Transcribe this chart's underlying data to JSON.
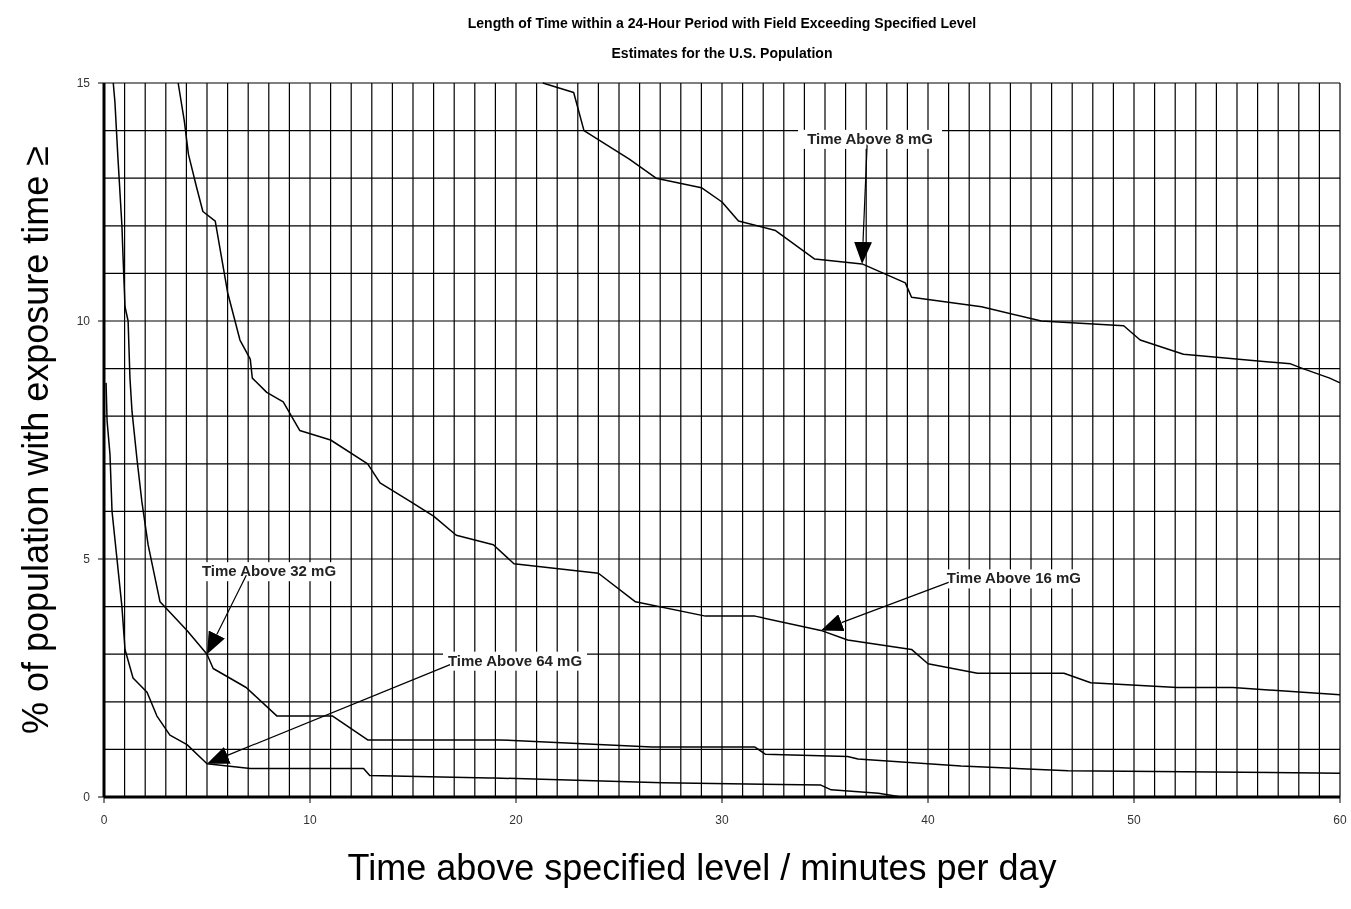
{
  "chart_data": {
    "type": "line",
    "title": "Length of Time within a 24-Hour Period with Field Exceeding Specified Level",
    "subtitle": "Estimates for the U.S. Population",
    "xlabel": "Time above specified level / minutes per day",
    "ylabel": "% of population with exposure time ≥",
    "xlim": [
      0,
      60
    ],
    "ylim": [
      0,
      15
    ],
    "xticks": [
      0,
      {
        "value": 1,
        "label": null
      },
      {
        "value": 2,
        "label": null
      },
      {
        "value": 3,
        "label": null
      },
      {
        "value": 4,
        "label": null
      },
      {
        "value": 5,
        "label": null
      },
      {
        "value": 6,
        "label": null
      },
      {
        "value": 7,
        "label": null
      },
      {
        "value": 8,
        "label": null
      },
      {
        "value": 9,
        "label": null
      },
      10,
      {
        "value": 11,
        "label": null
      },
      {
        "value": 12,
        "label": null
      },
      {
        "value": 13,
        "label": null
      },
      {
        "value": 14,
        "label": null
      },
      {
        "value": 15,
        "label": null
      },
      {
        "value": 16,
        "label": null
      },
      {
        "value": 17,
        "label": null
      },
      {
        "value": 18,
        "label": null
      },
      {
        "value": 19,
        "label": null
      },
      20,
      {
        "value": 21,
        "label": null
      },
      {
        "value": 22,
        "label": null
      },
      {
        "value": 23,
        "label": null
      },
      {
        "value": 24,
        "label": null
      },
      {
        "value": 25,
        "label": null
      },
      {
        "value": 26,
        "label": null
      },
      {
        "value": 27,
        "label": null
      },
      {
        "value": 28,
        "label": null
      },
      {
        "value": 29,
        "label": null
      },
      30,
      {
        "value": 31,
        "label": null
      },
      {
        "value": 32,
        "label": null
      },
      {
        "value": 33,
        "label": null
      },
      {
        "value": 34,
        "label": null
      },
      {
        "value": 35,
        "label": null
      },
      {
        "value": 36,
        "label": null
      },
      {
        "value": 37,
        "label": null
      },
      {
        "value": 38,
        "label": null
      },
      {
        "value": 39,
        "label": null
      },
      40,
      {
        "value": 41,
        "label": null
      },
      {
        "value": 42,
        "label": null
      },
      {
        "value": 43,
        "label": null
      },
      {
        "value": 44,
        "label": null
      },
      {
        "value": 45,
        "label": null
      },
      {
        "value": 46,
        "label": null
      },
      {
        "value": 47,
        "label": null
      },
      {
        "value": 48,
        "label": null
      },
      {
        "value": 49,
        "label": null
      },
      50,
      {
        "value": 51,
        "label": null
      },
      {
        "value": 52,
        "label": null
      },
      {
        "value": 53,
        "label": null
      },
      {
        "value": 54,
        "label": null
      },
      {
        "value": 55,
        "label": null
      },
      {
        "value": 56,
        "label": null
      },
      {
        "value": 57,
        "label": null
      },
      {
        "value": 58,
        "label": null
      },
      {
        "value": 59,
        "label": null
      },
      60
    ],
    "yticks": [
      0,
      {
        "value": 1,
        "label": null
      },
      {
        "value": 2,
        "label": null
      },
      {
        "value": 3,
        "label": null
      },
      {
        "value": 4,
        "label": null
      },
      5,
      {
        "value": 6,
        "label": null
      },
      {
        "value": 7,
        "label": null
      },
      {
        "value": 8,
        "label": null
      },
      {
        "value": 9,
        "label": null
      },
      10,
      {
        "value": 11,
        "label": null
      },
      {
        "value": 12,
        "label": null
      },
      {
        "value": 13,
        "label": null
      },
      {
        "value": 14,
        "label": null
      },
      15
    ],
    "grid": true,
    "marker": "none",
    "line_style": "solid",
    "series": [
      {
        "color": "#000000",
        "x": [
          21.3,
          22.8,
          23.3,
          25.5,
          26.8,
          29.0,
          30.0,
          30.8,
          32.6,
          34.5,
          36.8,
          38.9,
          39.2,
          42.6,
          45.5,
          49.5,
          50.3,
          52.4,
          57.6,
          58.2,
          59.5,
          60
        ],
        "values": [
          15.0,
          14.8,
          14.0,
          13.4,
          13.0,
          12.8,
          12.5,
          12.1,
          11.9,
          11.3,
          11.2,
          10.8,
          10.5,
          10.3,
          10.0,
          9.9,
          9.6,
          9.3,
          9.1,
          9.0,
          8.8,
          8.7
        ]
      },
      {
        "color": "#000000",
        "x": [
          3.6,
          3.9,
          4.1,
          4.5,
          4.8,
          5.4,
          5.8,
          6.0,
          6.6,
          7.1,
          7.2,
          7.9,
          8.7,
          9.5,
          11.0,
          12.8,
          13.4,
          14.9,
          16.0,
          17.1,
          18.9,
          19.9,
          24.0,
          25.8,
          29.2,
          31.6,
          34.8,
          36.1,
          39.2,
          40.0,
          42.4,
          46.6,
          47.9,
          52.1,
          54.8,
          58.2,
          60
        ],
        "values": [
          15.0,
          14.2,
          13.5,
          12.8,
          12.3,
          12.1,
          11.1,
          10.6,
          9.6,
          9.2,
          8.8,
          8.5,
          8.3,
          7.7,
          7.5,
          7.0,
          6.6,
          6.2,
          5.9,
          5.5,
          5.3,
          4.9,
          4.7,
          4.1,
          3.8,
          3.8,
          3.5,
          3.3,
          3.1,
          2.8,
          2.6,
          2.6,
          2.4,
          2.3,
          2.3,
          2.2,
          2.15
        ]
      },
      {
        "color": "#000000",
        "x": [
          0.45,
          0.53,
          0.68,
          0.87,
          0.92,
          1.02,
          1.17,
          1.26,
          1.36,
          1.6,
          1.84,
          2.14,
          2.72,
          4.03,
          5.0,
          5.3,
          6.9,
          8.4,
          11.1,
          12.8,
          16.3,
          19.2,
          26.6,
          31.6,
          32.1,
          36.1,
          36.6,
          41.6,
          46.8,
          60
        ],
        "values": [
          15.0,
          14.6,
          13.4,
          12.0,
          11.4,
          10.3,
          10.0,
          8.8,
          8.1,
          7.1,
          6.2,
          5.3,
          4.1,
          3.5,
          3.0,
          2.7,
          2.3,
          1.7,
          1.7,
          1.2,
          1.2,
          1.2,
          1.05,
          1.05,
          0.9,
          0.85,
          0.8,
          0.65,
          0.55,
          0.5
        ]
      },
      {
        "color": "#000000",
        "x": [
          0.1,
          0.15,
          0.29,
          0.39,
          0.63,
          0.87,
          1.02,
          1.41,
          2.09,
          2.57,
          3.2,
          4.03,
          5.0,
          7.1,
          12.6,
          12.9,
          18.7,
          18.9,
          27.1,
          34.8,
          35.3,
          37.6,
          38.7,
          60
        ],
        "values": [
          8.7,
          7.9,
          7.2,
          6.0,
          5.0,
          4.0,
          3.1,
          2.5,
          2.2,
          1.7,
          1.3,
          1.1,
          0.7,
          0.6,
          0.6,
          0.45,
          0.4,
          0.4,
          0.3,
          0.25,
          0.15,
          0.08,
          0.0,
          0.0
        ]
      }
    ],
    "annotations": [
      "Time Above 8 mG",
      "Time Above 16 mG",
      "Time Above 32 mG",
      "Time Above 64 mG"
    ]
  }
}
